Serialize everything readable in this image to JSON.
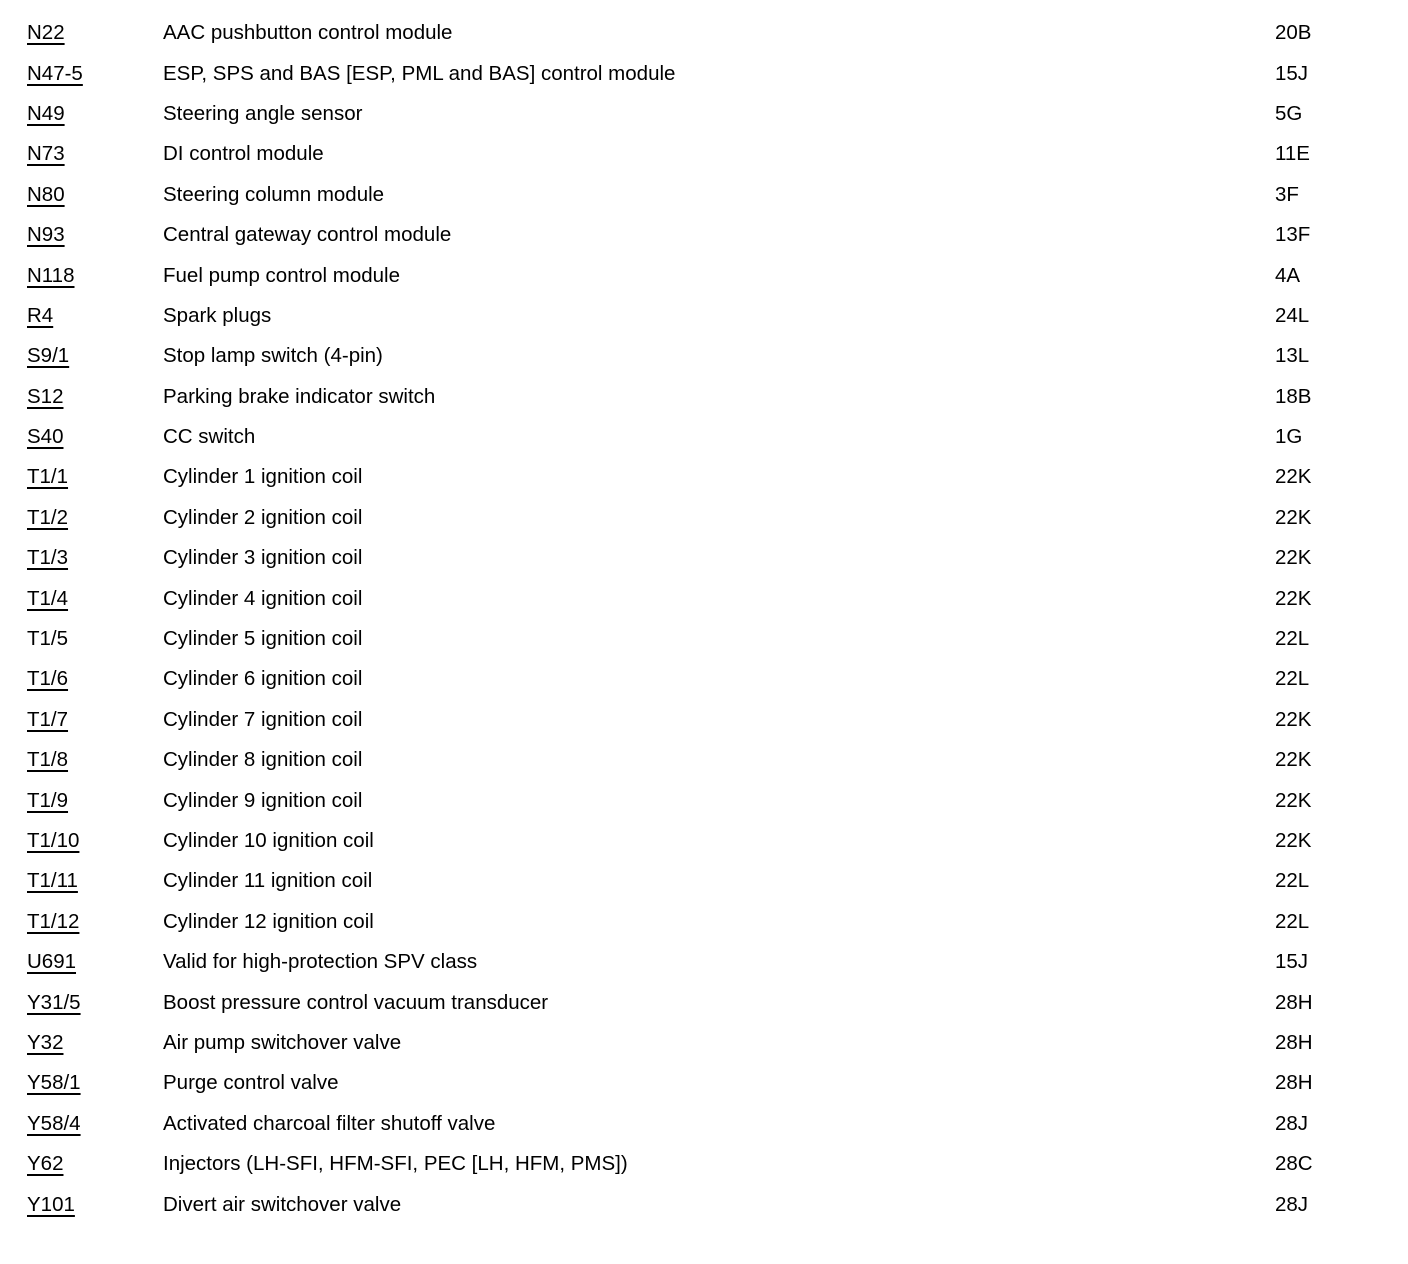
{
  "legend": {
    "rows": [
      {
        "code": "N22",
        "underlined": true,
        "description": "AAC pushbutton control module",
        "location": "20B"
      },
      {
        "code": "N47-5",
        "underlined": true,
        "description": "ESP, SPS and BAS [ESP, PML and BAS] control module",
        "location": "15J"
      },
      {
        "code": "N49",
        "underlined": true,
        "description": "Steering angle sensor",
        "location": "5G"
      },
      {
        "code": "N73",
        "underlined": true,
        "description": "DI control module",
        "location": "11E"
      },
      {
        "code": "N80",
        "underlined": true,
        "description": "Steering column module",
        "location": "3F"
      },
      {
        "code": "N93",
        "underlined": true,
        "description": "Central gateway control module",
        "location": "13F"
      },
      {
        "code": "N118",
        "underlined": true,
        "description": "Fuel pump control module",
        "location": "4A"
      },
      {
        "code": "R4",
        "underlined": true,
        "description": "Spark plugs",
        "location": "24L"
      },
      {
        "code": "S9/1",
        "underlined": true,
        "description": "Stop lamp switch (4-pin)",
        "location": "13L"
      },
      {
        "code": "S12",
        "underlined": true,
        "description": "Parking brake indicator switch",
        "location": "18B"
      },
      {
        "code": "S40",
        "underlined": true,
        "description": "CC switch",
        "location": "1G"
      },
      {
        "code": "T1/1",
        "underlined": true,
        "description": "Cylinder 1 ignition coil",
        "location": "22K"
      },
      {
        "code": "T1/2",
        "underlined": true,
        "description": "Cylinder 2 ignition coil",
        "location": "22K"
      },
      {
        "code": "T1/3",
        "underlined": true,
        "description": "Cylinder 3 ignition coil",
        "location": "22K"
      },
      {
        "code": "T1/4",
        "underlined": true,
        "description": "Cylinder 4 ignition coil",
        "location": "22K"
      },
      {
        "code": "T1/5",
        "underlined": false,
        "description": "Cylinder 5 ignition coil",
        "location": "22L"
      },
      {
        "code": "T1/6",
        "underlined": true,
        "description": "Cylinder 6 ignition coil",
        "location": "22L"
      },
      {
        "code": "T1/7",
        "underlined": true,
        "description": "Cylinder 7 ignition coil",
        "location": "22K"
      },
      {
        "code": "T1/8",
        "underlined": true,
        "description": "Cylinder 8 ignition coil",
        "location": "22K"
      },
      {
        "code": "T1/9",
        "underlined": true,
        "description": "Cylinder 9 ignition coil",
        "location": "22K"
      },
      {
        "code": "T1/10",
        "underlined": true,
        "description": "Cylinder 10 ignition coil",
        "location": "22K"
      },
      {
        "code": "T1/11",
        "underlined": true,
        "description": "Cylinder 11 ignition coil",
        "location": "22L"
      },
      {
        "code": "T1/12",
        "underlined": true,
        "description": "Cylinder 12 ignition coil",
        "location": "22L"
      },
      {
        "code": "U691",
        "underlined": true,
        "description": "Valid for high-protection SPV class",
        "location": "15J"
      },
      {
        "code": "Y31/5",
        "underlined": true,
        "description": "Boost pressure control vacuum transducer",
        "location": "28H"
      },
      {
        "code": "Y32",
        "underlined": true,
        "description": "Air pump switchover valve",
        "location": "28H"
      },
      {
        "code": "Y58/1",
        "underlined": true,
        "description": "Purge control valve",
        "location": "28H"
      },
      {
        "code": "Y58/4",
        "underlined": true,
        "description": "Activated charcoal filter shutoff valve",
        "location": "28J"
      },
      {
        "code": "Y62",
        "underlined": true,
        "description": "Injectors (LH-SFI, HFM-SFI, PEC [LH, HFM, PMS])",
        "location": "28C"
      },
      {
        "code": "Y101",
        "underlined": true,
        "description": "Divert air switchover valve",
        "location": "28J"
      }
    ],
    "text_color": "#000000",
    "background_color": "#ffffff"
  }
}
